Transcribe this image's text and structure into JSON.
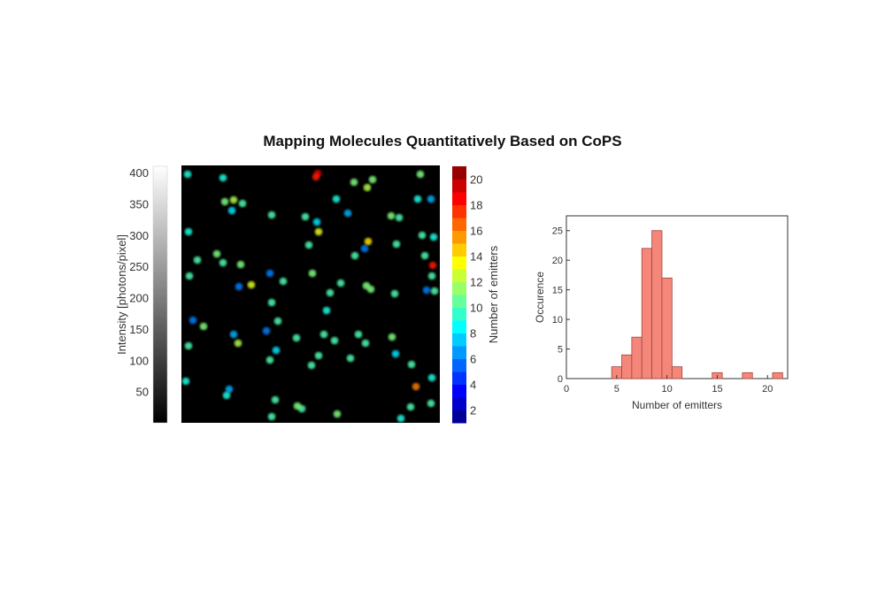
{
  "title": "Mapping Molecules Quantitatively Based on CoPS",
  "chart_data": [
    {
      "type": "heatmap",
      "description_role": "intensity image with emitter overlay",
      "intensity_colorbar": {
        "label": "Intensity [photons/pixel]",
        "ticks": [
          50,
          100,
          150,
          200,
          250,
          300,
          350,
          400
        ],
        "range": [
          0,
          410
        ],
        "colormap": "gray"
      },
      "emitters_colorbar": {
        "label": "Number of emitters",
        "ticks": [
          2,
          4,
          6,
          8,
          10,
          12,
          14,
          16,
          18,
          20
        ],
        "range": [
          1,
          21
        ],
        "colormap": "jet",
        "discrete": true
      }
    },
    {
      "type": "bar",
      "xlabel": "Number of emitters",
      "ylabel": "Occurence",
      "x": [
        5,
        6,
        7,
        8,
        9,
        10,
        11,
        15,
        18,
        21
      ],
      "values": [
        2,
        4,
        7,
        22,
        25,
        17,
        2,
        1,
        1,
        1
      ],
      "bin_width": 1,
      "xlim": [
        0,
        22
      ],
      "ylim": [
        0,
        27.5
      ],
      "xticks": [
        0,
        5,
        10,
        15,
        20
      ],
      "yticks": [
        0,
        5,
        10,
        15,
        20,
        25
      ],
      "bar_color": "#f4877a",
      "edge_color": "#a0443a",
      "grid": false
    }
  ]
}
